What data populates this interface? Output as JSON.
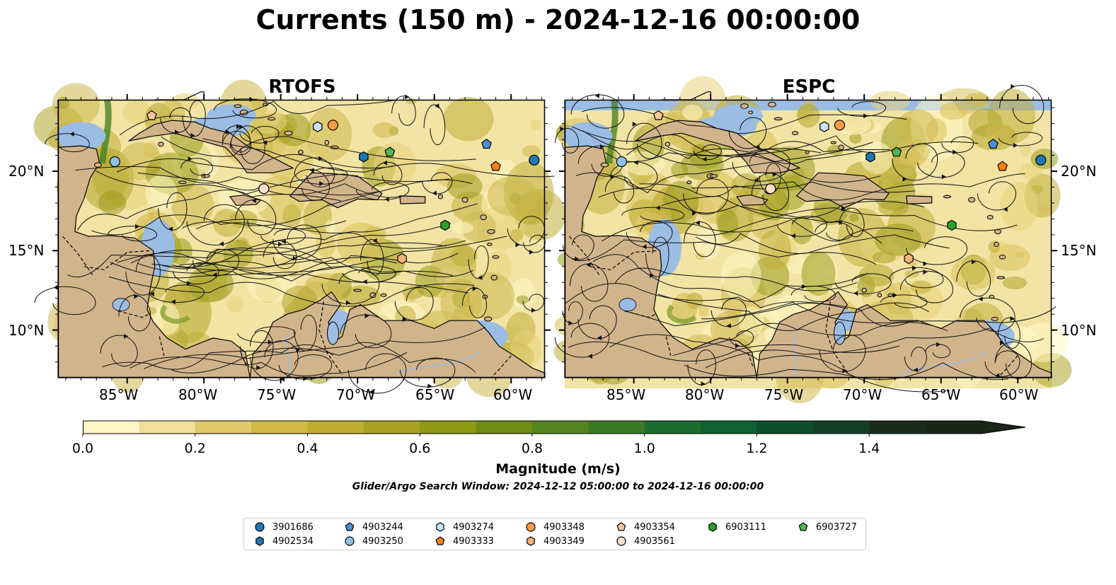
{
  "title": "Currents (150 m) - 2024-12-16 00:00:00",
  "panels": [
    {
      "name": "RTOFS"
    },
    {
      "name": "ESPC"
    }
  ],
  "axes": {
    "lon_ticks": [
      "85°W",
      "80°W",
      "75°W",
      "70°W",
      "65°W",
      "60°W"
    ],
    "lat_ticks": [
      "20°N",
      "15°N",
      "10°N"
    ]
  },
  "colorbar": {
    "label": "Magnitude (m/s)",
    "ticks": [
      "0.0",
      "0.2",
      "0.4",
      "0.6",
      "0.8",
      "1.0",
      "1.2",
      "1.4"
    ],
    "range": [
      0.0,
      1.6
    ],
    "colors": [
      "#fff7c4",
      "#f1e09a",
      "#e2c969",
      "#d2b847",
      "#bead2e",
      "#a7a21f",
      "#8e9a12",
      "#6f8c14",
      "#548420",
      "#3a7a24",
      "#1d6e2e",
      "#0f6234",
      "#0d4e2b",
      "#153f27",
      "#1a2c1c",
      "#1a2618"
    ]
  },
  "search_window": "Glider/Argo Search Window: 2024-12-12 05:00:00 to 2024-12-16 00:00:00",
  "colors": {
    "ocean": "#9bbde4",
    "land": "#d2b48c",
    "water_field": "#f2e4a4"
  },
  "legend": [
    {
      "id": "3901686",
      "shape": "circle",
      "color": "#1f77b4"
    },
    {
      "id": "4902534",
      "shape": "hexagon",
      "color": "#1f77b4"
    },
    {
      "id": "4903244",
      "shape": "pentagon",
      "color": "#4a90d9"
    },
    {
      "id": "4903250",
      "shape": "circle",
      "color": "#8ec1ea"
    },
    {
      "id": "4903274",
      "shape": "hexagon",
      "color": "#c6e3f7"
    },
    {
      "id": "4903333",
      "shape": "pentagon",
      "color": "#ff7f0e"
    },
    {
      "id": "4903348",
      "shape": "circle",
      "color": "#fd9a46"
    },
    {
      "id": "4903349",
      "shape": "hexagon",
      "color": "#fdb27a"
    },
    {
      "id": "4903354",
      "shape": "pentagon",
      "color": "#fdc79c"
    },
    {
      "id": "4903561",
      "shape": "circle",
      "color": "#fee0c8"
    },
    {
      "id": "6903111",
      "shape": "hexagon",
      "color": "#2ca02c"
    },
    {
      "id": "6903727",
      "shape": "pentagon",
      "color": "#4fb84f"
    }
  ],
  "floats": [
    {
      "id": "3901686",
      "lon": -58.5,
      "lat": 20.7
    },
    {
      "id": "4902534",
      "lon": -69.6,
      "lat": 20.9
    },
    {
      "id": "4903244",
      "lon": -61.6,
      "lat": 21.7
    },
    {
      "id": "4903250",
      "lon": -85.8,
      "lat": 20.6
    },
    {
      "id": "4903274",
      "lon": -72.6,
      "lat": 22.8
    },
    {
      "id": "4903333",
      "lon": -61.0,
      "lat": 20.3
    },
    {
      "id": "4903348",
      "lon": -71.6,
      "lat": 22.9
    },
    {
      "id": "4903349",
      "lon": -67.1,
      "lat": 14.5
    },
    {
      "id": "4903354",
      "lon": -83.4,
      "lat": 23.5
    },
    {
      "id": "4903561",
      "lon": -76.1,
      "lat": 18.9
    },
    {
      "id": "6903111",
      "lon": -64.3,
      "lat": 16.6
    },
    {
      "id": "6903727",
      "lon": -67.9,
      "lat": 21.2
    }
  ]
}
